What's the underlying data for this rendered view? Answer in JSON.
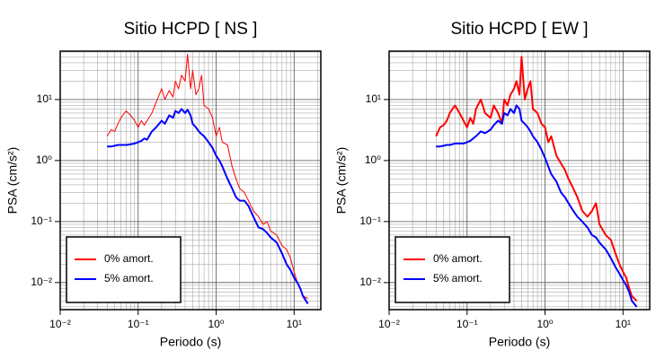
{
  "chart_data": [
    {
      "type": "line",
      "title": "Sitio HCPD [ NS ]",
      "x_label": "Periodo (s)",
      "y_label": "PSA (cm/s²)",
      "x_scale": "log",
      "y_scale": "log",
      "grid": true,
      "legend": "lower left",
      "xlim": [
        0.01,
        22
      ],
      "ylim": [
        0.0036,
        62
      ],
      "xticks": [
        {
          "value": 0.01,
          "label": "10⁻²"
        },
        {
          "value": 0.1,
          "label": "10⁻¹"
        },
        {
          "value": 1,
          "label": "10⁰"
        },
        {
          "value": 10,
          "label": "10¹"
        }
      ],
      "yticks": [
        {
          "value": 0.01,
          "label": "10⁻²"
        },
        {
          "value": 0.1,
          "label": "10⁻¹"
        },
        {
          "value": 1,
          "label": "10⁰"
        },
        {
          "value": 10,
          "label": "10¹"
        }
      ],
      "x": [
        0.04,
        0.045,
        0.05,
        0.055,
        0.06,
        0.07,
        0.08,
        0.09,
        0.1,
        0.11,
        0.12,
        0.13,
        0.15,
        0.17,
        0.2,
        0.22,
        0.25,
        0.28,
        0.3,
        0.33,
        0.36,
        0.4,
        0.43,
        0.47,
        0.5,
        0.55,
        0.6,
        0.65,
        0.7,
        0.8,
        0.9,
        1.0,
        1.1,
        1.2,
        1.4,
        1.6,
        1.8,
        2.0,
        2.3,
        2.6,
        3.0,
        3.5,
        4.0,
        4.5,
        5,
        6,
        7,
        8,
        9,
        10,
        11,
        12,
        13,
        15
      ],
      "series": [
        {
          "name": "0% amort.",
          "color": "#ff0000",
          "width": 1,
          "values": [
            2.5,
            3.2,
            3.0,
            4,
            5,
            6.5,
            5.5,
            4.5,
            3.5,
            4.5,
            3.8,
            4.5,
            6,
            9,
            15,
            10,
            14,
            11,
            20,
            15,
            25,
            20,
            55,
            15,
            30,
            12,
            15,
            25,
            8,
            7,
            5,
            2.5,
            3.5,
            2,
            1.8,
            0.8,
            0.5,
            0.35,
            0.3,
            0.22,
            0.15,
            0.12,
            0.09,
            0.1,
            0.07,
            0.06,
            0.04,
            0.035,
            0.025,
            0.015,
            0.01,
            0.008,
            0.006,
            0.0055
          ]
        },
        {
          "name": "5% amort.",
          "color": "#0000ff",
          "width": 2,
          "values": [
            1.7,
            1.7,
            1.75,
            1.8,
            1.8,
            1.8,
            1.85,
            1.9,
            2.0,
            2.1,
            2.3,
            2.2,
            3.0,
            3.5,
            4.5,
            4.0,
            5.5,
            5.0,
            6.5,
            6.0,
            7,
            6,
            6.8,
            5.5,
            4,
            3.5,
            3,
            2.7,
            2.5,
            2,
            1.6,
            1.2,
            1.0,
            0.8,
            0.5,
            0.35,
            0.25,
            0.22,
            0.22,
            0.18,
            0.12,
            0.08,
            0.075,
            0.065,
            0.055,
            0.045,
            0.03,
            0.02,
            0.016,
            0.012,
            0.01,
            0.008,
            0.006,
            0.0045
          ]
        }
      ]
    },
    {
      "type": "line",
      "title": "Sitio HCPD [ EW ]",
      "x_label": "Periodo (s)",
      "y_label": "PSA (cm/s²)",
      "x_scale": "log",
      "y_scale": "log",
      "grid": true,
      "legend": "lower left",
      "xlim": [
        0.01,
        22
      ],
      "ylim": [
        0.0036,
        62
      ],
      "xticks": [
        {
          "value": 0.01,
          "label": "10⁻²"
        },
        {
          "value": 0.1,
          "label": "10⁻¹"
        },
        {
          "value": 1,
          "label": "10⁰"
        },
        {
          "value": 10,
          "label": "10¹"
        }
      ],
      "yticks": [
        {
          "value": 0.01,
          "label": "10⁻²"
        },
        {
          "value": 0.1,
          "label": "10⁻¹"
        },
        {
          "value": 1,
          "label": "10⁰"
        },
        {
          "value": 10,
          "label": "10¹"
        }
      ],
      "x": [
        0.04,
        0.045,
        0.05,
        0.055,
        0.06,
        0.07,
        0.08,
        0.09,
        0.1,
        0.11,
        0.12,
        0.13,
        0.15,
        0.17,
        0.2,
        0.22,
        0.25,
        0.28,
        0.3,
        0.33,
        0.36,
        0.4,
        0.43,
        0.47,
        0.5,
        0.55,
        0.6,
        0.65,
        0.7,
        0.8,
        0.9,
        1.0,
        1.1,
        1.2,
        1.4,
        1.6,
        1.8,
        2.0,
        2.3,
        2.6,
        3.0,
        3.5,
        4.0,
        4.5,
        5,
        6,
        7,
        8,
        9,
        10,
        11,
        12,
        13,
        15
      ],
      "series": [
        {
          "name": "0% amort.",
          "color": "#ff0000",
          "width": 2,
          "values": [
            2.5,
            3.5,
            3.8,
            4.5,
            6,
            8,
            6,
            4.5,
            3.5,
            5,
            4,
            7,
            10,
            6,
            5,
            8,
            6,
            4,
            10,
            8,
            12,
            15,
            20,
            12,
            50,
            10,
            15,
            20,
            7,
            6,
            4,
            3.5,
            2,
            2.5,
            1.2,
            0.9,
            0.7,
            0.5,
            0.35,
            0.25,
            0.15,
            0.12,
            0.15,
            0.2,
            0.09,
            0.06,
            0.05,
            0.03,
            0.02,
            0.015,
            0.012,
            0.008,
            0.006,
            0.005
          ]
        },
        {
          "name": "5% amort.",
          "color": "#0000ff",
          "width": 2,
          "values": [
            1.7,
            1.7,
            1.75,
            1.8,
            1.8,
            1.9,
            1.9,
            1.9,
            2.0,
            2.1,
            2.3,
            2.5,
            3,
            2.8,
            3.2,
            3.8,
            4.5,
            4,
            6,
            5.5,
            7,
            6,
            8,
            7,
            4.5,
            4,
            3.5,
            3,
            2.5,
            2,
            1.5,
            1.1,
            0.8,
            0.6,
            0.45,
            0.3,
            0.25,
            0.2,
            0.15,
            0.12,
            0.1,
            0.08,
            0.06,
            0.055,
            0.045,
            0.035,
            0.025,
            0.018,
            0.014,
            0.011,
            0.009,
            0.007,
            0.005,
            0.004
          ]
        }
      ]
    }
  ]
}
